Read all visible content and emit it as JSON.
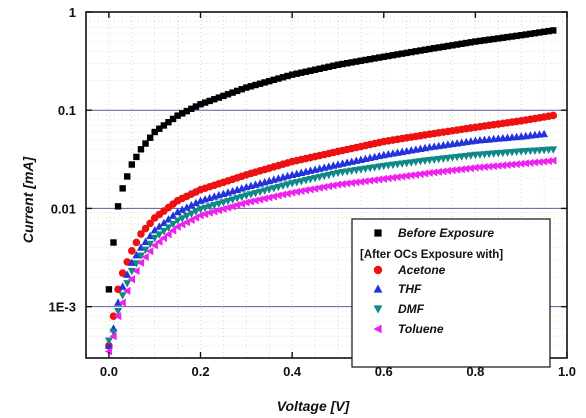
{
  "chart_data": {
    "type": "scatter",
    "title": "",
    "xlabel": "Voltage [V]",
    "ylabel": "Current [mA]",
    "x_scale": "linear",
    "y_scale": "log",
    "xlim": [
      -0.05,
      1.0
    ],
    "ylim": [
      0.0003,
      1.0
    ],
    "x_ticks": [
      "0.0",
      "0.2",
      "0.4",
      "0.6",
      "0.8",
      "1.0"
    ],
    "y_ticks": [
      "1",
      "0.1",
      "0.01",
      "1E-3"
    ],
    "y_tick_values": [
      1,
      0.1,
      0.01,
      0.001
    ],
    "grid": true,
    "legend_position": "bottom-right",
    "legend_group_header": "[After OCs Exposure with]",
    "series": [
      {
        "name": "Before Exposure",
        "marker": "square",
        "color": "#000000",
        "points": [
          [
            0.0,
            0.0015
          ],
          [
            0.01,
            0.0045
          ],
          [
            0.02,
            0.0105
          ],
          [
            0.03,
            0.016
          ],
          [
            0.05,
            0.028
          ],
          [
            0.07,
            0.04
          ],
          [
            0.1,
            0.06
          ],
          [
            0.15,
            0.088
          ],
          [
            0.2,
            0.115
          ],
          [
            0.3,
            0.17
          ],
          [
            0.4,
            0.23
          ],
          [
            0.5,
            0.29
          ],
          [
            0.6,
            0.35
          ],
          [
            0.7,
            0.42
          ],
          [
            0.8,
            0.5
          ],
          [
            0.9,
            0.58
          ],
          [
            0.98,
            0.66
          ]
        ]
      },
      {
        "name": "Acetone",
        "marker": "circle",
        "color": "#ee1111",
        "points": [
          [
            0.0,
            0.0004
          ],
          [
            0.01,
            0.0008
          ],
          [
            0.02,
            0.0015
          ],
          [
            0.03,
            0.0022
          ],
          [
            0.05,
            0.0037
          ],
          [
            0.07,
            0.0055
          ],
          [
            0.1,
            0.008
          ],
          [
            0.15,
            0.012
          ],
          [
            0.2,
            0.0155
          ],
          [
            0.3,
            0.022
          ],
          [
            0.4,
            0.03
          ],
          [
            0.5,
            0.038
          ],
          [
            0.6,
            0.048
          ],
          [
            0.7,
            0.057
          ],
          [
            0.8,
            0.067
          ],
          [
            0.9,
            0.078
          ],
          [
            0.98,
            0.09
          ]
        ]
      },
      {
        "name": "THF",
        "marker": "triangle-up",
        "color": "#2233dd",
        "points": [
          [
            0.0,
            0.0004
          ],
          [
            0.01,
            0.0006
          ],
          [
            0.02,
            0.0011
          ],
          [
            0.03,
            0.0016
          ],
          [
            0.05,
            0.0028
          ],
          [
            0.07,
            0.004
          ],
          [
            0.1,
            0.006
          ],
          [
            0.15,
            0.0092
          ],
          [
            0.2,
            0.012
          ],
          [
            0.3,
            0.0165
          ],
          [
            0.4,
            0.022
          ],
          [
            0.5,
            0.028
          ],
          [
            0.6,
            0.035
          ],
          [
            0.7,
            0.042
          ],
          [
            0.8,
            0.049
          ],
          [
            0.9,
            0.054
          ],
          [
            0.96,
            0.058
          ]
        ]
      },
      {
        "name": "DMF",
        "marker": "triangle-down",
        "color": "#118888",
        "points": [
          [
            0.0,
            0.00045
          ],
          [
            0.01,
            0.00055
          ],
          [
            0.02,
            0.0009
          ],
          [
            0.03,
            0.0013
          ],
          [
            0.05,
            0.0023
          ],
          [
            0.07,
            0.0033
          ],
          [
            0.1,
            0.005
          ],
          [
            0.15,
            0.0075
          ],
          [
            0.2,
            0.0098
          ],
          [
            0.3,
            0.0135
          ],
          [
            0.4,
            0.018
          ],
          [
            0.5,
            0.023
          ],
          [
            0.6,
            0.027
          ],
          [
            0.7,
            0.031
          ],
          [
            0.8,
            0.035
          ],
          [
            0.9,
            0.038
          ],
          [
            0.98,
            0.04
          ]
        ]
      },
      {
        "name": "Toluene",
        "marker": "triangle-left",
        "color": "#ee22ee",
        "points": [
          [
            0.0,
            0.00035
          ],
          [
            0.01,
            0.0005
          ],
          [
            0.02,
            0.0008
          ],
          [
            0.03,
            0.0011
          ],
          [
            0.05,
            0.0019
          ],
          [
            0.07,
            0.0028
          ],
          [
            0.1,
            0.0042
          ],
          [
            0.15,
            0.0065
          ],
          [
            0.2,
            0.0085
          ],
          [
            0.3,
            0.0115
          ],
          [
            0.4,
            0.0145
          ],
          [
            0.5,
            0.0175
          ],
          [
            0.6,
            0.02
          ],
          [
            0.7,
            0.023
          ],
          [
            0.8,
            0.026
          ],
          [
            0.9,
            0.0285
          ],
          [
            0.98,
            0.031
          ]
        ]
      }
    ]
  }
}
